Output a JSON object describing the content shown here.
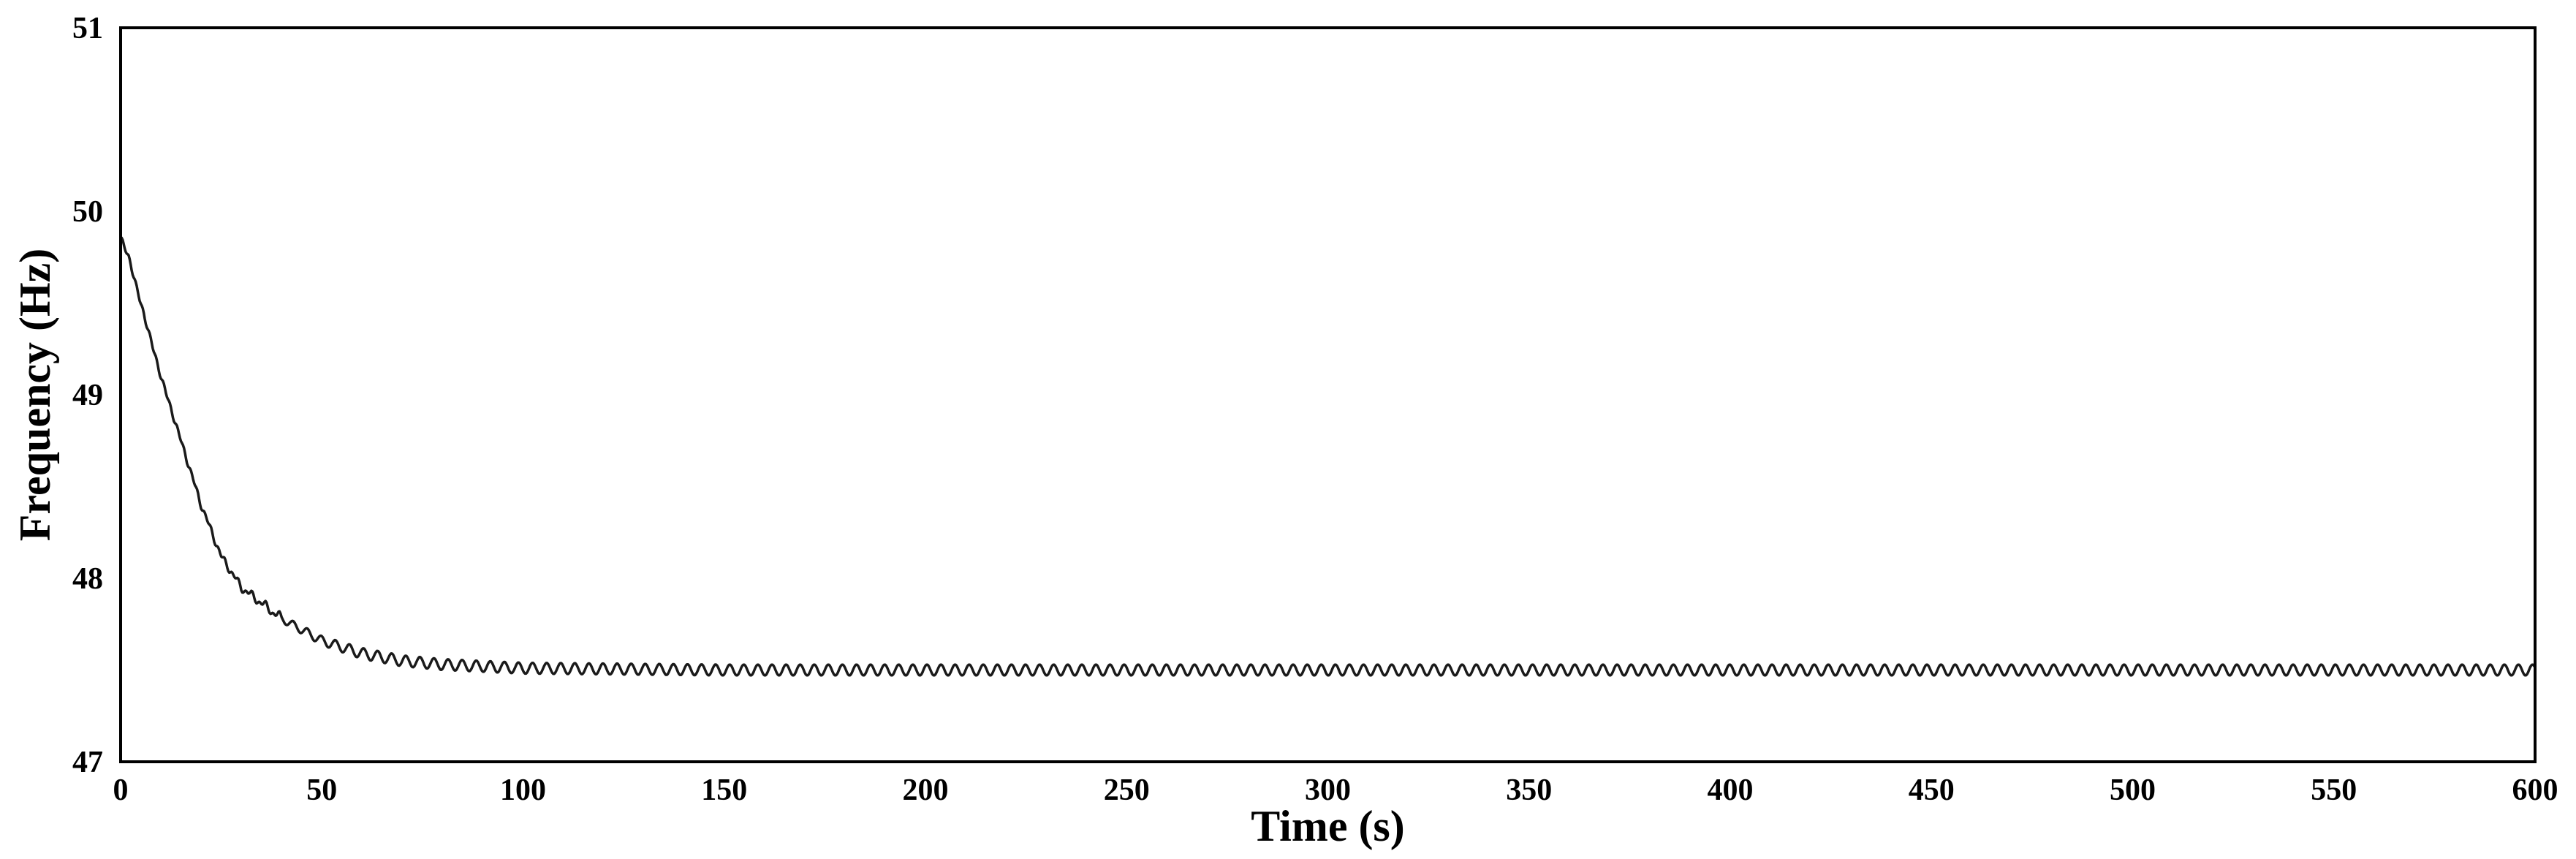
{
  "chart_data": {
    "type": "line",
    "title": "",
    "xlabel": "Time (s)",
    "ylabel": "Frequency (Hz)",
    "xlim": [
      0,
      600
    ],
    "ylim": [
      47,
      51
    ],
    "x_ticks": [
      0,
      50,
      100,
      150,
      200,
      250,
      300,
      350,
      400,
      450,
      500,
      550,
      600
    ],
    "y_ticks": [
      47,
      48,
      49,
      50,
      51
    ],
    "grid": false,
    "legend": "none",
    "line_color": "#1a1a1a",
    "series": [
      {
        "x": [
          0,
          2,
          5,
          10,
          15,
          20,
          25,
          30,
          40,
          50,
          60,
          70,
          80,
          100,
          150,
          200,
          300,
          400,
          500,
          600
        ],
        "values": [
          49.86,
          49.75,
          49.5,
          49.1,
          48.75,
          48.4,
          48.12,
          47.95,
          47.78,
          47.66,
          47.59,
          47.55,
          47.53,
          47.51,
          47.5,
          47.5,
          47.5,
          47.5,
          47.5,
          47.5
        ],
        "oscillation_amplitude": 0.03,
        "oscillation_period_s": 3.5
      }
    ]
  }
}
